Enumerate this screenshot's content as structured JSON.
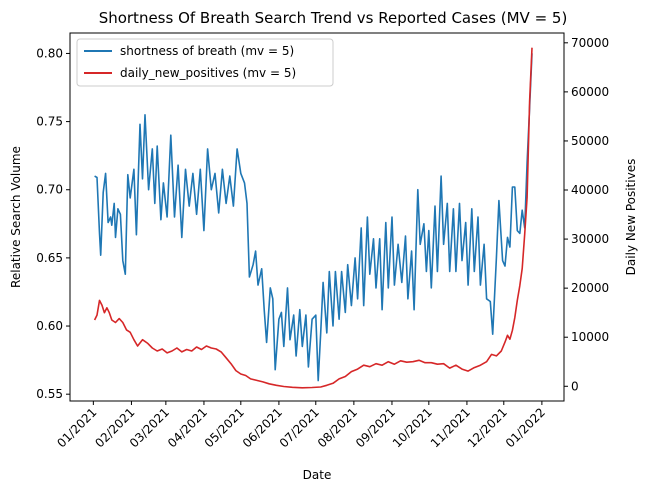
{
  "chart_data": {
    "type": "line",
    "title": "Shortness Of Breath Search Trend vs Reported Cases (MV = 5)",
    "xlabel": "Date",
    "ylabel_left": "Relative Search Volume",
    "ylabel_right": "Daily New Positives",
    "x_ticks": [
      {
        "date": "2021-01-01",
        "label": "01/2021"
      },
      {
        "date": "2021-02-01",
        "label": "02/2021"
      },
      {
        "date": "2021-03-01",
        "label": "03/2021"
      },
      {
        "date": "2021-04-01",
        "label": "04/2021"
      },
      {
        "date": "2021-05-01",
        "label": "05/2021"
      },
      {
        "date": "2021-06-01",
        "label": "06/2021"
      },
      {
        "date": "2021-07-01",
        "label": "07/2021"
      },
      {
        "date": "2021-08-01",
        "label": "08/2021"
      },
      {
        "date": "2021-09-01",
        "label": "09/2021"
      },
      {
        "date": "2021-10-01",
        "label": "10/2021"
      },
      {
        "date": "2021-11-01",
        "label": "11/2021"
      },
      {
        "date": "2021-12-01",
        "label": "12/2021"
      },
      {
        "date": "2022-01-01",
        "label": "01/2022"
      }
    ],
    "xlim": [
      "2020-12-13",
      "2022-01-19"
    ],
    "ylim_left": [
      0.545,
      0.815
    ],
    "yticks_left": [
      0.55,
      0.6,
      0.65,
      0.7,
      0.75,
      0.8
    ],
    "ytick_labels_left": [
      "0.55",
      "0.60",
      "0.65",
      "0.70",
      "0.75",
      "0.80"
    ],
    "ylim_right": [
      -3000,
      72000
    ],
    "yticks_right": [
      0,
      10000,
      20000,
      30000,
      40000,
      50000,
      60000,
      70000
    ],
    "ytick_labels_right": [
      "0",
      "10000",
      "20000",
      "30000",
      "40000",
      "50000",
      "60000",
      "70000"
    ],
    "legend_position": "upper-left",
    "series": [
      {
        "name": "shortness of breath (mv = 5)",
        "axis": "left",
        "color": "#1f77b4",
        "points": [
          [
            "2021-01-02",
            0.71
          ],
          [
            "2021-01-04",
            0.709
          ],
          [
            "2021-01-06",
            0.668
          ],
          [
            "2021-01-07",
            0.652
          ],
          [
            "2021-01-09",
            0.698
          ],
          [
            "2021-01-11",
            0.712
          ],
          [
            "2021-01-13",
            0.676
          ],
          [
            "2021-01-15",
            0.68
          ],
          [
            "2021-01-16",
            0.674
          ],
          [
            "2021-01-18",
            0.69
          ],
          [
            "2021-01-19",
            0.665
          ],
          [
            "2021-01-21",
            0.686
          ],
          [
            "2021-01-23",
            0.682
          ],
          [
            "2021-01-25",
            0.648
          ],
          [
            "2021-01-27",
            0.638
          ],
          [
            "2021-01-29",
            0.711
          ],
          [
            "2021-01-31",
            0.694
          ],
          [
            "2021-02-03",
            0.715
          ],
          [
            "2021-02-05",
            0.667
          ],
          [
            "2021-02-08",
            0.748
          ],
          [
            "2021-02-10",
            0.708
          ],
          [
            "2021-02-12",
            0.755
          ],
          [
            "2021-02-15",
            0.7
          ],
          [
            "2021-02-18",
            0.73
          ],
          [
            "2021-02-20",
            0.69
          ],
          [
            "2021-02-22",
            0.732
          ],
          [
            "2021-02-25",
            0.678
          ],
          [
            "2021-02-27",
            0.705
          ],
          [
            "2021-03-02",
            0.68
          ],
          [
            "2021-03-05",
            0.74
          ],
          [
            "2021-03-08",
            0.68
          ],
          [
            "2021-03-11",
            0.718
          ],
          [
            "2021-03-14",
            0.665
          ],
          [
            "2021-03-17",
            0.715
          ],
          [
            "2021-03-20",
            0.688
          ],
          [
            "2021-03-23",
            0.712
          ],
          [
            "2021-03-26",
            0.682
          ],
          [
            "2021-03-29",
            0.715
          ],
          [
            "2021-04-01",
            0.67
          ],
          [
            "2021-04-04",
            0.73
          ],
          [
            "2021-04-07",
            0.7
          ],
          [
            "2021-04-10",
            0.712
          ],
          [
            "2021-04-13",
            0.683
          ],
          [
            "2021-04-16",
            0.715
          ],
          [
            "2021-04-19",
            0.69
          ],
          [
            "2021-04-22",
            0.71
          ],
          [
            "2021-04-25",
            0.688
          ],
          [
            "2021-04-28",
            0.73
          ],
          [
            "2021-05-01",
            0.712
          ],
          [
            "2021-05-04",
            0.705
          ],
          [
            "2021-05-06",
            0.69
          ],
          [
            "2021-05-08",
            0.636
          ],
          [
            "2021-05-11",
            0.645
          ],
          [
            "2021-05-13",
            0.655
          ],
          [
            "2021-05-15",
            0.63
          ],
          [
            "2021-05-18",
            0.642
          ],
          [
            "2021-05-20",
            0.612
          ],
          [
            "2021-05-22",
            0.588
          ],
          [
            "2021-05-25",
            0.628
          ],
          [
            "2021-05-27",
            0.62
          ],
          [
            "2021-05-29",
            0.568
          ],
          [
            "2021-06-01",
            0.605
          ],
          [
            "2021-06-03",
            0.61
          ],
          [
            "2021-06-05",
            0.585
          ],
          [
            "2021-06-08",
            0.628
          ],
          [
            "2021-06-10",
            0.59
          ],
          [
            "2021-06-13",
            0.608
          ],
          [
            "2021-06-15",
            0.578
          ],
          [
            "2021-06-18",
            0.612
          ],
          [
            "2021-06-20",
            0.585
          ],
          [
            "2021-06-23",
            0.608
          ],
          [
            "2021-06-25",
            0.57
          ],
          [
            "2021-06-28",
            0.605
          ],
          [
            "2021-07-01",
            0.608
          ],
          [
            "2021-07-03",
            0.56
          ],
          [
            "2021-07-05",
            0.595
          ],
          [
            "2021-07-07",
            0.632
          ],
          [
            "2021-07-10",
            0.595
          ],
          [
            "2021-07-12",
            0.64
          ],
          [
            "2021-07-15",
            0.6
          ],
          [
            "2021-07-17",
            0.64
          ],
          [
            "2021-07-20",
            0.605
          ],
          [
            "2021-07-22",
            0.64
          ],
          [
            "2021-07-25",
            0.61
          ],
          [
            "2021-07-27",
            0.645
          ],
          [
            "2021-07-30",
            0.615
          ],
          [
            "2021-08-02",
            0.65
          ],
          [
            "2021-08-04",
            0.62
          ],
          [
            "2021-08-07",
            0.672
          ],
          [
            "2021-08-09",
            0.615
          ],
          [
            "2021-08-12",
            0.68
          ],
          [
            "2021-08-14",
            0.638
          ],
          [
            "2021-08-17",
            0.664
          ],
          [
            "2021-08-19",
            0.628
          ],
          [
            "2021-08-22",
            0.664
          ],
          [
            "2021-08-24",
            0.612
          ],
          [
            "2021-08-27",
            0.676
          ],
          [
            "2021-08-29",
            0.628
          ],
          [
            "2021-09-01",
            0.68
          ],
          [
            "2021-09-03",
            0.63
          ],
          [
            "2021-09-06",
            0.66
          ],
          [
            "2021-09-09",
            0.632
          ],
          [
            "2021-09-12",
            0.666
          ],
          [
            "2021-09-14",
            0.62
          ],
          [
            "2021-09-17",
            0.655
          ],
          [
            "2021-09-19",
            0.612
          ],
          [
            "2021-09-22",
            0.7
          ],
          [
            "2021-09-24",
            0.66
          ],
          [
            "2021-09-27",
            0.675
          ],
          [
            "2021-09-29",
            0.64
          ],
          [
            "2021-10-01",
            0.67
          ],
          [
            "2021-10-03",
            0.628
          ],
          [
            "2021-10-06",
            0.688
          ],
          [
            "2021-10-08",
            0.64
          ],
          [
            "2021-10-11",
            0.71
          ],
          [
            "2021-10-13",
            0.66
          ],
          [
            "2021-10-16",
            0.69
          ],
          [
            "2021-10-18",
            0.64
          ],
          [
            "2021-10-21",
            0.686
          ],
          [
            "2021-10-23",
            0.64
          ],
          [
            "2021-10-26",
            0.69
          ],
          [
            "2021-10-28",
            0.648
          ],
          [
            "2021-10-31",
            0.676
          ],
          [
            "2021-11-02",
            0.63
          ],
          [
            "2021-11-05",
            0.686
          ],
          [
            "2021-11-07",
            0.64
          ],
          [
            "2021-11-10",
            0.68
          ],
          [
            "2021-11-12",
            0.63
          ],
          [
            "2021-11-15",
            0.66
          ],
          [
            "2021-11-17",
            0.62
          ],
          [
            "2021-11-20",
            0.618
          ],
          [
            "2021-11-22",
            0.594
          ],
          [
            "2021-11-25",
            0.65
          ],
          [
            "2021-11-27",
            0.692
          ],
          [
            "2021-11-30",
            0.648
          ],
          [
            "2021-12-02",
            0.644
          ],
          [
            "2021-12-04",
            0.665
          ],
          [
            "2021-12-06",
            0.658
          ],
          [
            "2021-12-08",
            0.702
          ],
          [
            "2021-12-10",
            0.702
          ],
          [
            "2021-12-12",
            0.67
          ],
          [
            "2021-12-14",
            0.668
          ],
          [
            "2021-12-16",
            0.685
          ],
          [
            "2021-12-18",
            0.672
          ],
          [
            "2021-12-20",
            0.72
          ],
          [
            "2021-12-22",
            0.76
          ],
          [
            "2021-12-24",
            0.8
          ]
        ]
      },
      {
        "name": "daily_new_positives (mv = 5)",
        "axis": "right",
        "color": "#d62728",
        "points": [
          [
            "2021-01-02",
            13500
          ],
          [
            "2021-01-04",
            14500
          ],
          [
            "2021-01-06",
            17500
          ],
          [
            "2021-01-08",
            16500
          ],
          [
            "2021-01-10",
            15000
          ],
          [
            "2021-01-12",
            16000
          ],
          [
            "2021-01-14",
            15000
          ],
          [
            "2021-01-16",
            13500
          ],
          [
            "2021-01-19",
            13000
          ],
          [
            "2021-01-22",
            13800
          ],
          [
            "2021-01-25",
            13000
          ],
          [
            "2021-01-28",
            11500
          ],
          [
            "2021-01-31",
            11000
          ],
          [
            "2021-02-03",
            9500
          ],
          [
            "2021-02-06",
            8200
          ],
          [
            "2021-02-10",
            9500
          ],
          [
            "2021-02-14",
            8800
          ],
          [
            "2021-02-18",
            7800
          ],
          [
            "2021-02-22",
            7200
          ],
          [
            "2021-02-26",
            7600
          ],
          [
            "2021-03-02",
            6800
          ],
          [
            "2021-03-06",
            7200
          ],
          [
            "2021-03-10",
            7800
          ],
          [
            "2021-03-14",
            7000
          ],
          [
            "2021-03-18",
            7500
          ],
          [
            "2021-03-22",
            7200
          ],
          [
            "2021-03-26",
            8000
          ],
          [
            "2021-03-30",
            7500
          ],
          [
            "2021-04-03",
            8200
          ],
          [
            "2021-04-07",
            7800
          ],
          [
            "2021-04-11",
            7600
          ],
          [
            "2021-04-15",
            7000
          ],
          [
            "2021-04-19",
            5800
          ],
          [
            "2021-04-23",
            4600
          ],
          [
            "2021-04-27",
            3200
          ],
          [
            "2021-05-01",
            2500
          ],
          [
            "2021-05-05",
            2200
          ],
          [
            "2021-05-09",
            1500
          ],
          [
            "2021-05-14",
            1200
          ],
          [
            "2021-05-19",
            900
          ],
          [
            "2021-05-24",
            500
          ],
          [
            "2021-05-30",
            200
          ],
          [
            "2021-06-05",
            -50
          ],
          [
            "2021-06-12",
            -200
          ],
          [
            "2021-06-20",
            -300
          ],
          [
            "2021-06-28",
            -250
          ],
          [
            "2021-07-05",
            -150
          ],
          [
            "2021-07-10",
            200
          ],
          [
            "2021-07-15",
            600
          ],
          [
            "2021-07-20",
            1500
          ],
          [
            "2021-07-25",
            2000
          ],
          [
            "2021-07-30",
            3000
          ],
          [
            "2021-08-04",
            3500
          ],
          [
            "2021-08-09",
            4300
          ],
          [
            "2021-08-14",
            4000
          ],
          [
            "2021-08-19",
            4600
          ],
          [
            "2021-08-24",
            4300
          ],
          [
            "2021-08-29",
            5000
          ],
          [
            "2021-09-03",
            4500
          ],
          [
            "2021-09-08",
            5200
          ],
          [
            "2021-09-13",
            4900
          ],
          [
            "2021-09-18",
            5000
          ],
          [
            "2021-09-23",
            5300
          ],
          [
            "2021-09-28",
            4800
          ],
          [
            "2021-10-03",
            4800
          ],
          [
            "2021-10-08",
            4500
          ],
          [
            "2021-10-13",
            4600
          ],
          [
            "2021-10-18",
            3700
          ],
          [
            "2021-10-23",
            4300
          ],
          [
            "2021-10-28",
            3500
          ],
          [
            "2021-11-02",
            3100
          ],
          [
            "2021-11-07",
            3800
          ],
          [
            "2021-11-12",
            4300
          ],
          [
            "2021-11-17",
            5000
          ],
          [
            "2021-11-21",
            6500
          ],
          [
            "2021-11-25",
            6200
          ],
          [
            "2021-11-29",
            7200
          ],
          [
            "2021-12-02",
            9000
          ],
          [
            "2021-12-04",
            10400
          ],
          [
            "2021-12-06",
            9600
          ],
          [
            "2021-12-08",
            11400
          ],
          [
            "2021-12-10",
            14000
          ],
          [
            "2021-12-12",
            17500
          ],
          [
            "2021-12-14",
            20500
          ],
          [
            "2021-12-16",
            24000
          ],
          [
            "2021-12-18",
            31000
          ],
          [
            "2021-12-20",
            38500
          ],
          [
            "2021-12-22",
            58000
          ],
          [
            "2021-12-24",
            69000
          ]
        ]
      }
    ]
  }
}
